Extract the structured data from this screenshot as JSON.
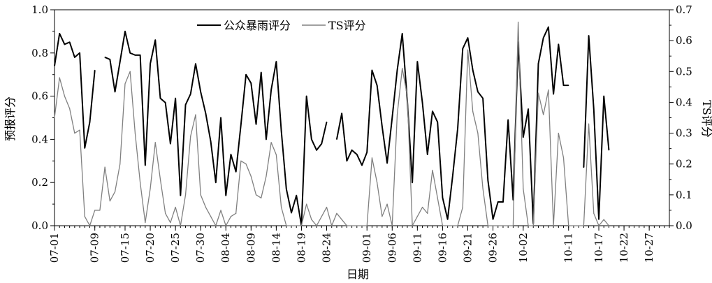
{
  "chart_data": {
    "type": "line",
    "xlabel": "日期",
    "ylabel": "预报评分",
    "y2label": "TS评分",
    "ylim": [
      0,
      1.0
    ],
    "y2lim": [
      0,
      0.7
    ],
    "yticks": [
      "0.0",
      "0.2",
      "0.4",
      "0.6",
      "0.8",
      "1.0"
    ],
    "y2ticks": [
      "0.0",
      "0.1",
      "0.2",
      "0.3",
      "0.4",
      "0.5",
      "0.6",
      "0.7"
    ],
    "xtick_labels": [
      {
        "i": 0,
        "label": "07-01"
      },
      {
        "i": 8,
        "label": "07-09"
      },
      {
        "i": 14,
        "label": "07-15"
      },
      {
        "i": 19,
        "label": "07-20"
      },
      {
        "i": 24,
        "label": "07-25"
      },
      {
        "i": 29,
        "label": "07-30"
      },
      {
        "i": 34,
        "label": "08-04"
      },
      {
        "i": 39,
        "label": "08-09"
      },
      {
        "i": 44,
        "label": "08-14"
      },
      {
        "i": 49,
        "label": "08-19"
      },
      {
        "i": 54,
        "label": "08-24"
      },
      {
        "i": 62,
        "label": "09-01"
      },
      {
        "i": 67,
        "label": "09-06"
      },
      {
        "i": 72,
        "label": "09-11"
      },
      {
        "i": 77,
        "label": "09-16"
      },
      {
        "i": 82,
        "label": "09-21"
      },
      {
        "i": 87,
        "label": "09-26"
      },
      {
        "i": 93,
        "label": "10-02"
      },
      {
        "i": 102,
        "label": "10-11"
      },
      {
        "i": 108,
        "label": "10-17"
      },
      {
        "i": 113,
        "label": "10-22"
      },
      {
        "i": 118,
        "label": "10-27"
      }
    ],
    "legend": "top-center",
    "series": [
      {
        "name": "公众暴雨评分",
        "axis": "left",
        "color": "#000000",
        "values": [
          0.74,
          0.89,
          0.84,
          0.85,
          0.78,
          0.8,
          0.36,
          0.48,
          0.72,
          null,
          0.78,
          0.77,
          0.62,
          0.76,
          0.9,
          0.8,
          0.79,
          0.79,
          0.28,
          0.75,
          0.86,
          0.59,
          0.57,
          0.38,
          0.59,
          0.14,
          0.56,
          0.61,
          0.75,
          0.62,
          0.52,
          0.39,
          0.2,
          0.5,
          0.14,
          0.33,
          0.25,
          0.47,
          0.7,
          0.66,
          0.47,
          0.71,
          0.4,
          0.63,
          0.76,
          0.44,
          0.17,
          0.06,
          0.14,
          0.0,
          0.6,
          0.4,
          0.35,
          0.38,
          0.48,
          null,
          0.4,
          0.52,
          0.3,
          0.35,
          0.33,
          0.28,
          0.34,
          0.72,
          0.65,
          0.46,
          0.29,
          0.5,
          0.72,
          0.89,
          0.58,
          0.2,
          0.76,
          0.57,
          0.33,
          0.53,
          0.48,
          0.13,
          0.03,
          0.23,
          0.45,
          0.82,
          0.87,
          0.72,
          0.62,
          0.59,
          0.21,
          0.03,
          0.11,
          0.11,
          0.49,
          0.12,
          0.85,
          0.41,
          0.54,
          0.01,
          0.75,
          0.87,
          0.92,
          0.61,
          0.84,
          0.65,
          0.65,
          null,
          null,
          0.27,
          0.88,
          0.54,
          0.03,
          0.6,
          0.35
        ],
        "x": [
          0,
          1,
          2,
          3,
          4,
          5,
          6,
          7,
          8,
          9,
          10,
          11,
          12,
          13,
          14,
          15,
          16,
          17,
          18,
          19,
          20,
          21,
          22,
          23,
          24,
          25,
          26,
          27,
          28,
          29,
          30,
          31,
          32,
          33,
          34,
          35,
          36,
          37,
          38,
          39,
          40,
          41,
          42,
          43,
          44,
          45,
          46,
          47,
          48,
          49,
          50,
          51,
          52,
          53,
          54,
          55,
          56,
          57,
          58,
          59,
          60,
          61,
          62,
          63,
          64,
          65,
          66,
          67,
          68,
          69,
          70,
          71,
          72,
          73,
          74,
          75,
          76,
          77,
          78,
          79,
          80,
          81,
          82,
          83,
          84,
          85,
          86,
          87,
          88,
          89,
          90,
          91,
          92,
          93,
          94,
          95,
          96,
          97,
          98,
          99,
          100,
          101,
          102,
          103,
          104,
          105,
          106,
          107,
          108,
          109,
          110
        ]
      },
      {
        "name": "TS评分",
        "axis": "right",
        "color": "#808080",
        "values": [
          0.35,
          0.48,
          0.42,
          0.38,
          0.3,
          0.31,
          0.03,
          0.0,
          0.05,
          0.05,
          0.19,
          0.08,
          0.11,
          0.2,
          0.46,
          0.5,
          0.3,
          0.14,
          0.01,
          0.12,
          0.27,
          0.15,
          0.04,
          0.01,
          0.06,
          0.0,
          0.1,
          0.29,
          0.36,
          0.1,
          0.06,
          0.03,
          0.0,
          0.05,
          0.0,
          0.03,
          0.04,
          0.21,
          0.2,
          0.16,
          0.1,
          0.09,
          0.16,
          0.27,
          0.23,
          0.06,
          0.0,
          0.0,
          0.0,
          0.0,
          0.07,
          0.02,
          0.0,
          0.03,
          0.06,
          0.0,
          0.04,
          0.02,
          0.0,
          0.0,
          0.0,
          0.0,
          0.0,
          0.22,
          0.14,
          0.03,
          0.07,
          0.0,
          0.36,
          0.51,
          0.42,
          0.0,
          0.03,
          0.06,
          0.04,
          0.18,
          0.09,
          0.0,
          0.0,
          0.0,
          0.0,
          0.06,
          0.57,
          0.37,
          0.3,
          0.12,
          0.0,
          0.0,
          0.0,
          0.0,
          0.0,
          0.0,
          0.66,
          0.12,
          0.0,
          0.0,
          0.43,
          0.36,
          0.44,
          0.0,
          0.3,
          0.22,
          0.0,
          0.0,
          0.0,
          0.0,
          0.33,
          0.04,
          0.0,
          0.02,
          0.0
        ],
        "x": [
          0,
          1,
          2,
          3,
          4,
          5,
          6,
          7,
          8,
          9,
          10,
          11,
          12,
          13,
          14,
          15,
          16,
          17,
          18,
          19,
          20,
          21,
          22,
          23,
          24,
          25,
          26,
          27,
          28,
          29,
          30,
          31,
          32,
          33,
          34,
          35,
          36,
          37,
          38,
          39,
          40,
          41,
          42,
          43,
          44,
          45,
          46,
          47,
          48,
          49,
          50,
          51,
          52,
          53,
          54,
          55,
          56,
          57,
          58,
          59,
          60,
          61,
          62,
          63,
          64,
          65,
          66,
          67,
          68,
          69,
          70,
          71,
          72,
          73,
          74,
          75,
          76,
          77,
          78,
          79,
          80,
          81,
          82,
          83,
          84,
          85,
          86,
          87,
          88,
          89,
          90,
          91,
          92,
          93,
          94,
          95,
          96,
          97,
          98,
          99,
          100,
          101,
          102,
          103,
          104,
          105,
          106,
          107,
          108,
          109,
          110
        ]
      }
    ]
  }
}
